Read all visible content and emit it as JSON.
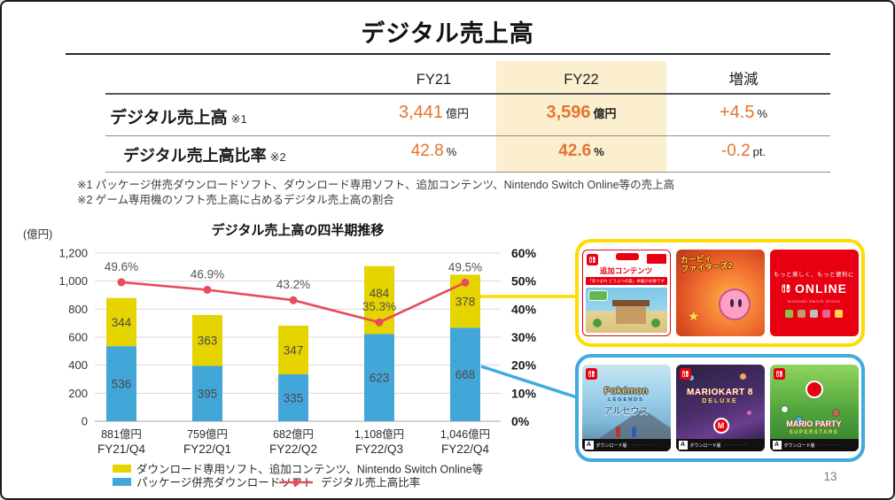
{
  "slide": {
    "title": "デジタル売上高",
    "page_number": "13"
  },
  "colors": {
    "accent_orange": "#E2752E",
    "fy22_highlight": "#FCEFD0",
    "bar_blue": "#42A6D9",
    "bar_yellow": "#E5D400",
    "line_red": "#E64C5A",
    "digital_box_border": "#FFDC00",
    "package_box_border": "#3FABE0",
    "nintendo_red": "#E60012"
  },
  "table": {
    "columns": [
      "FY21",
      "FY22",
      "増減"
    ],
    "rows": [
      {
        "label": "デジタル売上高",
        "note_ref": "※1",
        "fy21": {
          "value": "3,441",
          "unit": "億円"
        },
        "fy22": {
          "value": "3,596",
          "unit": "億円"
        },
        "delta": {
          "value": "+4.5",
          "unit": "%"
        }
      },
      {
        "label": "デジタル売上高比率",
        "note_ref": "※2",
        "fy21": {
          "value": "42.8",
          "unit": "%"
        },
        "fy22": {
          "value": "42.6",
          "unit": "%"
        },
        "delta": {
          "value": "-0.2",
          "unit": "pt."
        }
      }
    ],
    "footnotes": [
      "※1 パッケージ併売ダウンロードソフト、ダウンロード専用ソフト、追加コンテンツ、Nintendo Switch Online等の売上高",
      "※2 ゲーム専用機のソフト売上高に占めるデジタル売上高の割合"
    ]
  },
  "chart_data": {
    "type": "bar+line",
    "title": "デジタル売上高の四半期推移",
    "y_left": {
      "label": "(億円)",
      "min": 0,
      "max": 1200,
      "step": 200
    },
    "y_right": {
      "min": 0,
      "max": 60,
      "step": 10,
      "unit": "%"
    },
    "categories": [
      "FY21/Q4",
      "FY22/Q1",
      "FY22/Q2",
      "FY22/Q3",
      "FY22/Q4"
    ],
    "totals_labels": [
      "881億円",
      "759億円",
      "682億円",
      "1,108億円",
      "1,046億円"
    ],
    "series": [
      {
        "name": "パッケージ併売ダウンロードソフト",
        "color": "#42A6D9",
        "values": [
          536,
          395,
          335,
          623,
          668
        ]
      },
      {
        "name": "ダウンロード専用ソフト、追加コンテンツ、Nintendo Switch Online等",
        "color": "#E5D400",
        "values": [
          344,
          363,
          347,
          484,
          378
        ]
      }
    ],
    "line": {
      "name": "デジタル売上高比率",
      "color": "#E64C5A",
      "values": [
        49.6,
        46.9,
        43.2,
        35.3,
        49.5
      ],
      "labels": [
        "49.6%",
        "46.9%",
        "43.2%",
        "35.3%",
        "49.5%"
      ]
    },
    "legend_position": "bottom",
    "grid": true
  },
  "promo": {
    "digital_box": {
      "cards": [
        {
          "id": "animal-crossing-dlc",
          "badge": "追加コンテンツ",
          "band": "「あつまれ どうぶつの森」本編が必要です"
        },
        {
          "id": "kirby-fighters-2",
          "title_line1": "カービィ",
          "title_line2": "ファイターズ2"
        },
        {
          "id": "nintendo-switch-online",
          "tagline": "もっと楽しく、もっと便利に",
          "logo": "ONLINE",
          "sub": "Nintendo Switch Online"
        }
      ]
    },
    "package_box": {
      "cards": [
        {
          "id": "pokemon-legends-arceus",
          "title": "Pokémon",
          "series_label": "LEGENDS",
          "subtitle_jp": "アルセウス",
          "strip": "ダウンロード版",
          "cero": "A"
        },
        {
          "id": "mario-kart-8-deluxe",
          "title": "MARIOKART 8",
          "subtitle": "DELUXE",
          "strip": "ダウンロード版",
          "cero": "A"
        },
        {
          "id": "mario-party-superstars",
          "title": "MARIO PARTY",
          "subtitle": "SUPERSTARS",
          "strip": "ダウンロード版",
          "cero": "A"
        }
      ]
    }
  }
}
